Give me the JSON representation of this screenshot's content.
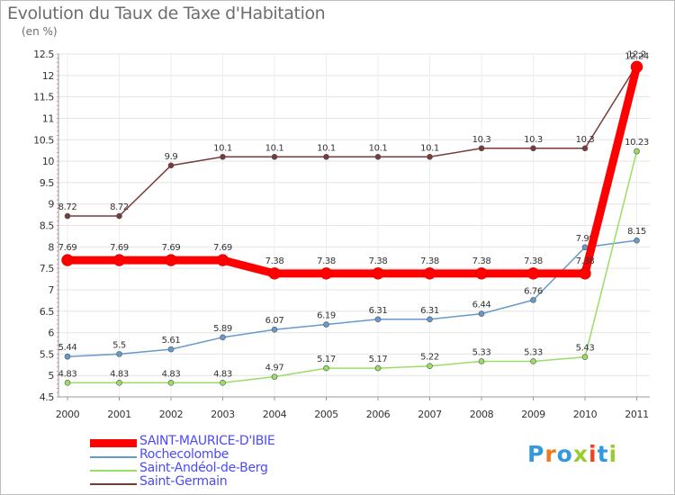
{
  "title": "Evolution du Taux de Taxe d'Habitation",
  "unit_label": "(en %)",
  "brand": "Proxiti",
  "chart_data": {
    "type": "line",
    "title": "Evolution du Taux de Taxe d'Habitation",
    "ylabel": "(en %)",
    "xlabel": "",
    "categories": [
      "2000",
      "2001",
      "2002",
      "2003",
      "2004",
      "2005",
      "2006",
      "2007",
      "2008",
      "2009",
      "2010",
      "2011"
    ],
    "ylim": [
      4.5,
      12.5
    ],
    "yticks": [
      4.5,
      5,
      5.5,
      6,
      6.5,
      7,
      7.5,
      8,
      8.5,
      9,
      9.5,
      10,
      10.5,
      11,
      11.5,
      12,
      12.5
    ],
    "ytick_labels": [
      "4.5",
      "5",
      "5.5",
      "6",
      "6.5",
      "7",
      "7.5",
      "8",
      "8.5",
      "9",
      "9.5",
      "10",
      "10.5",
      "11",
      "11.5",
      "12",
      "12.5"
    ],
    "grid": true,
    "legend_position": "bottom-left",
    "series": [
      {
        "name": "SAINT-MAURICE-D'IBIE",
        "color": "#ff0000",
        "values": [
          7.69,
          7.69,
          7.69,
          7.69,
          7.38,
          7.38,
          7.38,
          7.38,
          7.38,
          7.38,
          7.38,
          12.2
        ],
        "labels": [
          "7.69",
          "7.69",
          "7.69",
          "7.69",
          "7.38",
          "7.38",
          "7.38",
          "7.38",
          "7.38",
          "7.38",
          "7.38",
          "12.2"
        ]
      },
      {
        "name": "Rochecolombe",
        "color": "#6699cc",
        "values": [
          5.44,
          5.5,
          5.61,
          5.89,
          6.07,
          6.19,
          6.31,
          6.31,
          6.44,
          6.76,
          7.99,
          8.15
        ],
        "labels": [
          "5.44",
          "5.5",
          "5.61",
          "5.89",
          "6.07",
          "6.19",
          "6.31",
          "6.31",
          "6.44",
          "6.76",
          "7.99",
          "8.15"
        ]
      },
      {
        "name": "Saint-Andéol-de-Berg",
        "color": "#99dd66",
        "values": [
          4.83,
          4.83,
          4.83,
          4.83,
          4.97,
          5.17,
          5.17,
          5.22,
          5.33,
          5.33,
          5.43,
          10.23
        ],
        "labels": [
          "4.83",
          "4.83",
          "4.83",
          "4.83",
          "4.97",
          "5.17",
          "5.17",
          "5.22",
          "5.33",
          "5.33",
          "5.43",
          "10.23"
        ]
      },
      {
        "name": "Saint-Germain",
        "color": "#7a3a3a",
        "values": [
          8.72,
          8.72,
          9.9,
          10.1,
          10.1,
          10.1,
          10.1,
          10.1,
          10.3,
          10.3,
          10.3,
          12.24
        ],
        "labels": [
          "8.72",
          "8.72",
          "9.9",
          "10.1",
          "10.1",
          "10.1",
          "10.1",
          "10.1",
          "10.3",
          "10.3",
          "10.3",
          "12.24"
        ]
      }
    ]
  }
}
